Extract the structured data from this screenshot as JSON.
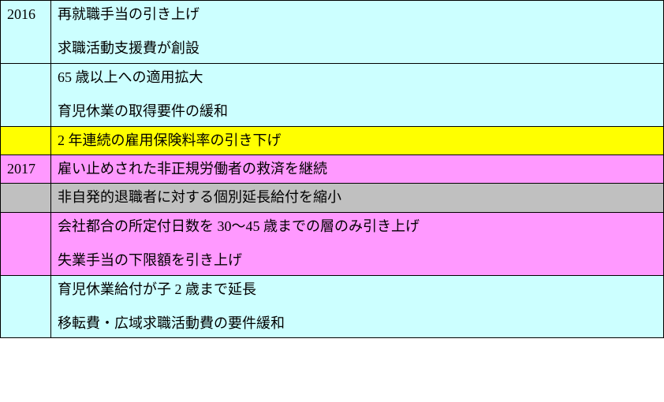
{
  "colors": {
    "cyan": "#ccffff",
    "yellow": "#ffff00",
    "magenta": "#ff99ff",
    "gray": "#c0c0c0",
    "border": "#000000",
    "text": "#000000"
  },
  "table": {
    "rows": [
      {
        "year": "2016",
        "year_bg": "cyan",
        "content_bg": "cyan",
        "lines": [
          "再就職手当の引き上げ",
          "求職活動支援費が創設"
        ]
      },
      {
        "year": "",
        "year_bg": "cyan",
        "content_bg": "cyan",
        "lines": [
          "65 歳以上への適用拡大",
          "育児休業の取得要件の緩和"
        ]
      },
      {
        "year": "",
        "year_bg": "yellow",
        "content_bg": "yellow",
        "lines": [
          "2 年連続の雇用保険料率の引き下げ"
        ]
      },
      {
        "year": "2017",
        "year_bg": "magenta",
        "content_bg": "magenta",
        "lines": [
          "雇い止めされた非正規労働者の救済を継続"
        ]
      },
      {
        "year": "",
        "year_bg": "gray",
        "content_bg": "gray",
        "lines": [
          "非自発的退職者に対する個別延長給付を縮小"
        ]
      },
      {
        "year": "",
        "year_bg": "magenta",
        "content_bg": "magenta",
        "lines": [
          "会社都合の所定付日数を 30～45 歳までの層のみ引き上げ",
          "失業手当の下限額を引き上げ"
        ]
      },
      {
        "year": "",
        "year_bg": "cyan",
        "content_bg": "cyan",
        "lines": [
          "育児休業給付が子 2 歳まで延長",
          "移転費・広域求職活動費の要件緩和"
        ]
      }
    ]
  }
}
